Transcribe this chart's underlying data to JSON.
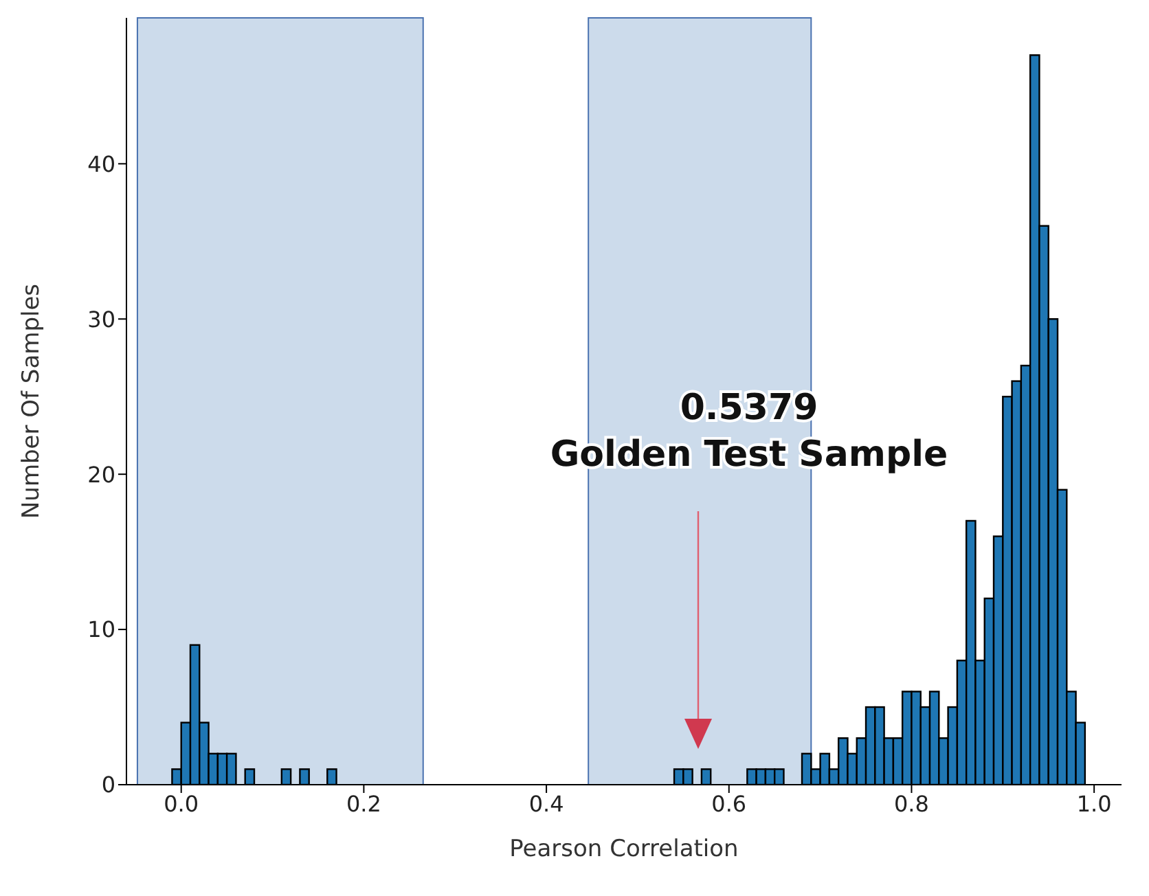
{
  "chart_data": {
    "type": "histogram",
    "xlabel": "Pearson Correlation",
    "ylabel": "Number Of Samples",
    "bins": [
      -0.01,
      0,
      0.01,
      0.02,
      0.03,
      0.04,
      0.05,
      0.06,
      0.07,
      0.08,
      0.09,
      0.1,
      0.11,
      0.12,
      0.13,
      0.14,
      0.15,
      0.16,
      0.17,
      0.18,
      0.19,
      0.2,
      0.21,
      0.22,
      0.23,
      0.24,
      0.25,
      0.26,
      0.27,
      0.28,
      0.29,
      0.3,
      0.31,
      0.32,
      0.33,
      0.34,
      0.35,
      0.36,
      0.37,
      0.38,
      0.39,
      0.4,
      0.41,
      0.42,
      0.43,
      0.44,
      0.45,
      0.46,
      0.47,
      0.48,
      0.49,
      0.5,
      0.51,
      0.52,
      0.53,
      0.54,
      0.55,
      0.56,
      0.57,
      0.58,
      0.59,
      0.6,
      0.61,
      0.62,
      0.63,
      0.64,
      0.65,
      0.66,
      0.67,
      0.68,
      0.69,
      0.7,
      0.71,
      0.72,
      0.73,
      0.74,
      0.75,
      0.76,
      0.77,
      0.78,
      0.79,
      0.8,
      0.81,
      0.82,
      0.83,
      0.84,
      0.85,
      0.86,
      0.87,
      0.88,
      0.89,
      0.9,
      0.91,
      0.92,
      0.93,
      0.94,
      0.95,
      0.96,
      0.97,
      0.98,
      0.99
    ],
    "values": [
      1,
      4,
      9,
      4,
      2,
      2,
      2,
      0,
      1,
      0,
      0,
      0,
      1,
      0,
      1,
      0,
      0,
      1,
      0,
      0,
      0,
      0,
      0,
      0,
      0,
      0,
      0,
      0,
      0,
      0,
      0,
      0,
      0,
      0,
      0,
      0,
      0,
      0,
      0,
      0,
      0,
      0,
      0,
      0,
      0,
      0,
      0,
      0,
      0,
      0,
      0,
      0,
      0,
      0,
      0,
      1,
      1,
      0,
      1,
      0,
      0,
      0,
      0,
      1,
      1,
      1,
      1,
      0,
      0,
      2,
      1,
      2,
      1,
      3,
      2,
      3,
      5,
      5,
      3,
      3,
      6,
      6,
      5,
      6,
      3,
      5,
      8,
      17,
      8,
      12,
      16,
      25,
      26,
      27,
      47,
      36,
      30,
      19,
      6,
      4
    ],
    "color": "#1f77b4",
    "xlim": [
      -0.06,
      1.03
    ],
    "xticks": [
      {
        "value": 0,
        "label": "0.0"
      },
      {
        "value": 0.2,
        "label": "0.2"
      },
      {
        "value": 0.4,
        "label": "0.4"
      },
      {
        "value": 0.6,
        "label": "0.6"
      },
      {
        "value": 0.8,
        "label": "0.8"
      },
      {
        "value": 1,
        "label": "1.0"
      }
    ],
    "ylim": [
      0,
      49.4
    ],
    "yticks": [
      0,
      10,
      20,
      30,
      40
    ],
    "grid": false,
    "legend": false,
    "bands": [
      {
        "axis": "x",
        "from": -0.048,
        "to": 0.265,
        "color": "#ccdbeb"
      },
      {
        "axis": "x",
        "from": 0.446,
        "to": 0.69,
        "color": "#ccdbeb"
      }
    ],
    "annotations": [
      "0.5379\nGolden Test Sample"
    ]
  }
}
